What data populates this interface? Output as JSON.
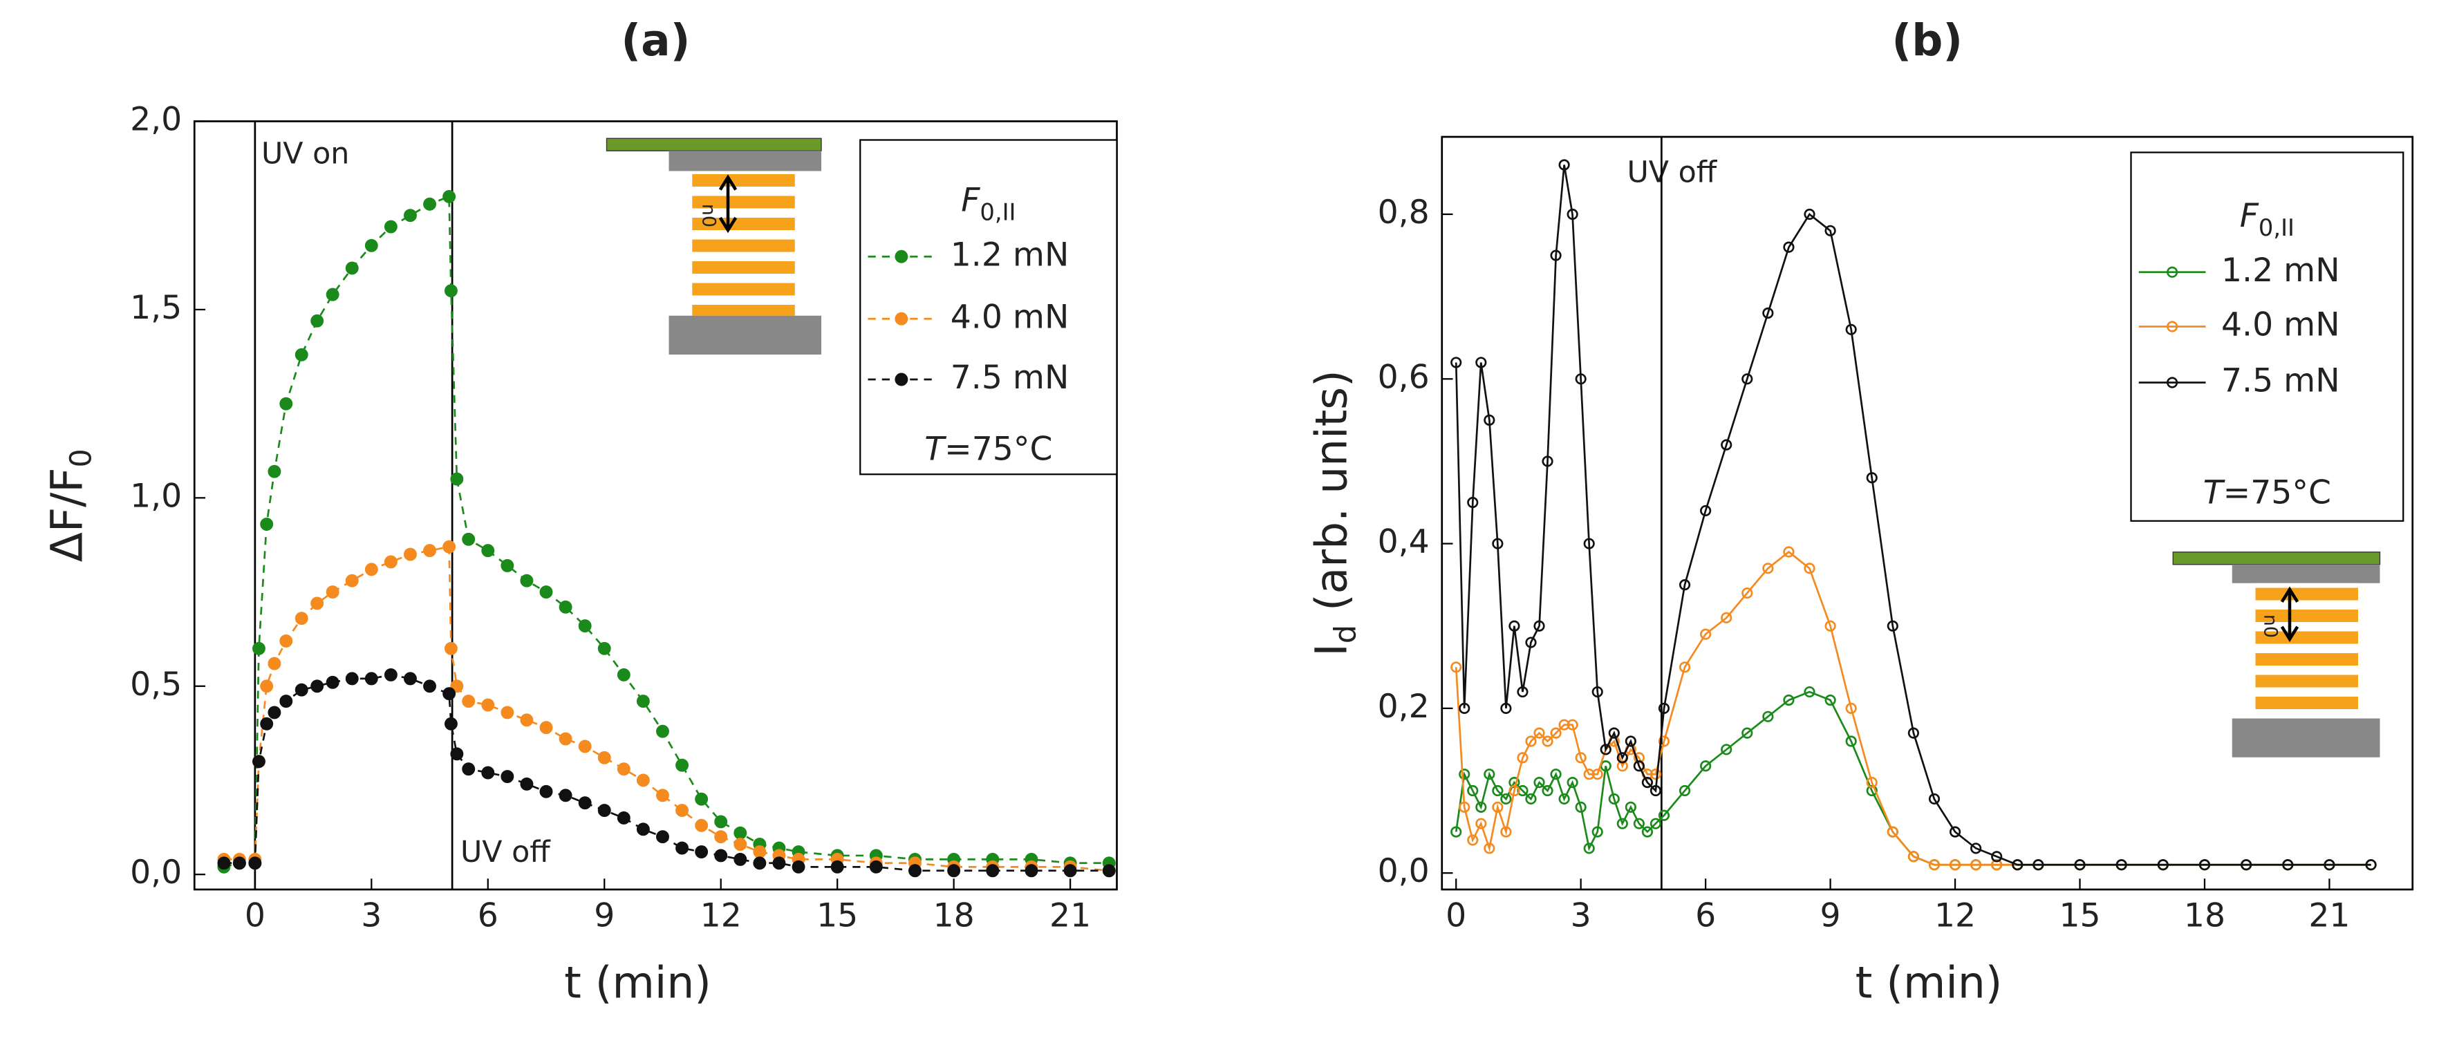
{
  "chart_data": [
    {
      "type": "line",
      "title": "(a)",
      "x_label": "t (min)",
      "y_label": "ΔF/F",
      "y_label_sub": "0",
      "annotations": [
        "UV on",
        "UV off"
      ],
      "vlines": [
        0,
        5.08
      ],
      "legend_title": "F",
      "legend_title_sub": "0,II",
      "condition": "T",
      "condition_value": "=75°C",
      "marker": "filled",
      "line_style": "dashed",
      "xlim": [
        -1.56,
        22.2
      ],
      "xticks": [
        0,
        3,
        6,
        9,
        12,
        15,
        18,
        21
      ],
      "ylim": [
        -0.04,
        2.0
      ],
      "yticks": [
        {
          "value": 0,
          "label": "0,0"
        },
        {
          "value": 0.5,
          "label": "0,5"
        },
        {
          "value": 1.0,
          "label": "1,0"
        },
        {
          "value": 1.5,
          "label": "1,5"
        },
        {
          "value": 2.0,
          "label": "2,0"
        }
      ],
      "x": [
        -0.8,
        -0.4,
        0,
        0.1,
        0.3,
        0.5,
        0.8,
        1.2,
        1.6,
        2,
        2.5,
        3,
        3.5,
        4,
        4.5,
        5,
        5.05,
        5.2,
        5.5,
        6,
        6.5,
        7,
        7.5,
        8,
        8.5,
        9,
        9.5,
        10,
        10.5,
        11,
        11.5,
        12,
        12.5,
        13,
        13.5,
        14,
        15,
        16,
        17,
        18,
        19,
        20,
        21,
        22
      ],
      "series": [
        {
          "name": "1.2 mN",
          "color": "#1a8a1a",
          "values": [
            0.02,
            0.03,
            0.03,
            0.6,
            0.93,
            1.07,
            1.25,
            1.38,
            1.47,
            1.54,
            1.61,
            1.67,
            1.72,
            1.75,
            1.78,
            1.8,
            1.55,
            1.05,
            0.89,
            0.86,
            0.82,
            0.78,
            0.75,
            0.71,
            0.66,
            0.6,
            0.53,
            0.46,
            0.38,
            0.29,
            0.2,
            0.14,
            0.11,
            0.08,
            0.07,
            0.06,
            0.05,
            0.05,
            0.04,
            0.04,
            0.04,
            0.04,
            0.03,
            0.03
          ]
        },
        {
          "name": "4.0 mN",
          "color": "#f58a1f",
          "values": [
            0.04,
            0.04,
            0.04,
            0.3,
            0.5,
            0.56,
            0.62,
            0.68,
            0.72,
            0.75,
            0.78,
            0.81,
            0.83,
            0.85,
            0.86,
            0.87,
            0.6,
            0.5,
            0.46,
            0.45,
            0.43,
            0.41,
            0.39,
            0.36,
            0.34,
            0.31,
            0.28,
            0.25,
            0.21,
            0.17,
            0.13,
            0.1,
            0.08,
            0.06,
            0.05,
            0.04,
            0.04,
            0.03,
            0.03,
            0.02,
            0.02,
            0.02,
            0.02,
            0.01
          ]
        },
        {
          "name": "7.5 mN",
          "color": "#111111",
          "values": [
            0.03,
            0.03,
            0.03,
            0.3,
            0.4,
            0.43,
            0.46,
            0.49,
            0.5,
            0.51,
            0.52,
            0.52,
            0.53,
            0.52,
            0.5,
            0.48,
            0.4,
            0.32,
            0.28,
            0.27,
            0.26,
            0.24,
            0.22,
            0.21,
            0.19,
            0.17,
            0.15,
            0.12,
            0.1,
            0.07,
            0.06,
            0.05,
            0.04,
            0.03,
            0.03,
            0.02,
            0.02,
            0.02,
            0.01,
            0.01,
            0.01,
            0.01,
            0.01,
            0.01
          ]
        }
      ]
    },
    {
      "type": "line",
      "title": "(b)",
      "x_label": "t (min)",
      "y_label": "I",
      "y_label_sub": "d",
      "y_label_rest": " (arb. units)",
      "annotations": [
        "UV off"
      ],
      "vlines": [
        4.94
      ],
      "legend_title": "F",
      "legend_title_sub": "0,II",
      "condition": "T",
      "condition_value": "=75°C",
      "marker": "open",
      "line_style": "solid",
      "xlim": [
        -0.34,
        23.0
      ],
      "xticks": [
        0,
        3,
        6,
        9,
        12,
        15,
        18,
        21
      ],
      "ylim": [
        -0.02,
        0.894
      ],
      "yticks": [
        {
          "value": 0,
          "label": "0,0"
        },
        {
          "value": 0.2,
          "label": "0,2"
        },
        {
          "value": 0.4,
          "label": "0,4"
        },
        {
          "value": 0.6,
          "label": "0,6"
        },
        {
          "value": 0.8,
          "label": "0,8"
        }
      ],
      "x": [
        0,
        0.2,
        0.4,
        0.6,
        0.8,
        1,
        1.2,
        1.4,
        1.6,
        1.8,
        2,
        2.2,
        2.4,
        2.6,
        2.8,
        3,
        3.2,
        3.4,
        3.6,
        3.8,
        4,
        4.2,
        4.4,
        4.6,
        4.8,
        5,
        5.5,
        6,
        6.5,
        7,
        7.5,
        8,
        8.5,
        9,
        9.5,
        10,
        10.5,
        11,
        11.5,
        12,
        12.5,
        13,
        13.5,
        14,
        15,
        16,
        17,
        18,
        19,
        20,
        21,
        22
      ],
      "series": [
        {
          "name": "1.2 mN",
          "color": "#1a8a1a",
          "values": [
            0.05,
            0.12,
            0.1,
            0.08,
            0.12,
            0.1,
            0.09,
            0.11,
            0.1,
            0.09,
            0.11,
            0.1,
            0.12,
            0.09,
            0.11,
            0.08,
            0.03,
            0.05,
            0.13,
            0.09,
            0.06,
            0.08,
            0.06,
            0.05,
            0.06,
            0.07,
            0.1,
            0.13,
            0.15,
            0.17,
            0.19,
            0.21,
            0.22,
            0.21,
            0.16,
            0.1,
            0.05,
            0.02,
            0.01,
            0.01,
            0.01,
            0.01,
            0.01,
            0.01,
            0.01,
            0.01,
            0.01,
            0.01,
            0.01,
            0.01,
            0.01,
            0.01
          ]
        },
        {
          "name": "4.0 mN",
          "color": "#f58a1f",
          "values": [
            0.25,
            0.08,
            0.04,
            0.06,
            0.03,
            0.08,
            0.05,
            0.1,
            0.14,
            0.16,
            0.17,
            0.16,
            0.17,
            0.18,
            0.18,
            0.14,
            0.12,
            0.12,
            0.15,
            0.16,
            0.13,
            0.15,
            0.14,
            0.12,
            0.12,
            0.16,
            0.25,
            0.29,
            0.31,
            0.34,
            0.37,
            0.39,
            0.37,
            0.3,
            0.2,
            0.11,
            0.05,
            0.02,
            0.01,
            0.01,
            0.01,
            0.01,
            0.01,
            0.01,
            0.01,
            0.01,
            0.01,
            0.01,
            0.01,
            0.01,
            0.01,
            0.01
          ]
        },
        {
          "name": "7.5 mN",
          "color": "#111111",
          "values": [
            0.62,
            0.2,
            0.45,
            0.62,
            0.55,
            0.4,
            0.2,
            0.3,
            0.22,
            0.28,
            0.3,
            0.5,
            0.75,
            0.86,
            0.8,
            0.6,
            0.4,
            0.22,
            0.15,
            0.17,
            0.14,
            0.16,
            0.13,
            0.11,
            0.1,
            0.2,
            0.35,
            0.44,
            0.52,
            0.6,
            0.68,
            0.76,
            0.8,
            0.78,
            0.66,
            0.48,
            0.3,
            0.17,
            0.09,
            0.05,
            0.03,
            0.02,
            0.01,
            0.01,
            0.01,
            0.01,
            0.01,
            0.01,
            0.01,
            0.01,
            0.01,
            0.01
          ]
        }
      ]
    }
  ]
}
